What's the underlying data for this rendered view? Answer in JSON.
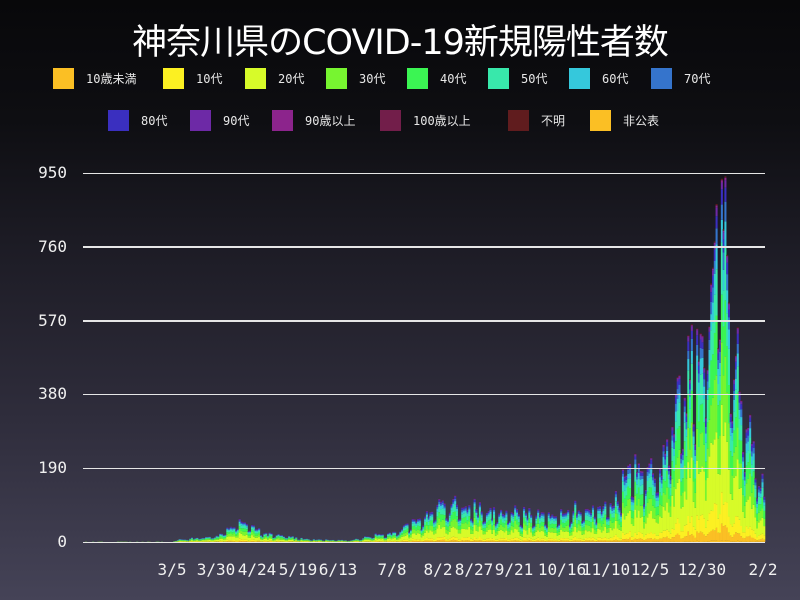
{
  "title": "神奈川県のCOVID-19新規陽性者数",
  "legend": [
    {
      "label": "10歳未満",
      "color": "#fbbf24"
    },
    {
      "label": "10代",
      "color": "#fcf022"
    },
    {
      "label": "20代",
      "color": "#d7fb29"
    },
    {
      "label": "30代",
      "color": "#77f530"
    },
    {
      "label": "40代",
      "color": "#3bf553"
    },
    {
      "label": "50代",
      "color": "#38e8ab"
    },
    {
      "label": "60代",
      "color": "#35c8dc"
    },
    {
      "label": "70代",
      "color": "#3574cc"
    },
    {
      "label": "80代",
      "color": "#3a2fbf"
    },
    {
      "label": "90代",
      "color": "#6d29a6"
    },
    {
      "label": "90歳以上",
      "color": "#8c248c"
    },
    {
      "label": "100歳以上",
      "color": "#721e4a"
    },
    {
      "label": "不明",
      "color": "#601c1e"
    },
    {
      "label": "非公表",
      "color": "#fbbf24"
    }
  ],
  "chart_data": {
    "type": "bar",
    "stacked": true,
    "title": "神奈川県のCOVID-19新規陽性者数",
    "xlabel": "",
    "ylabel": "",
    "ylim": [
      0,
      1000
    ],
    "yticks": [
      0,
      190,
      380,
      570,
      760,
      950
    ],
    "xtick_labels": [
      "3/5",
      "3/30",
      "4/24",
      "5/19",
      "6/13",
      "7/8",
      "8/2",
      "8/27",
      "9/21",
      "10/16",
      "11/10",
      "12/5",
      "12/30",
      "2/2"
    ],
    "grid": true,
    "legend_position": "top",
    "series_names": [
      "10歳未満",
      "10代",
      "20代",
      "30代",
      "40代",
      "50代",
      "60代",
      "70代",
      "80代",
      "90代",
      "90歳以上",
      "100歳以上",
      "不明",
      "非公表"
    ],
    "period": "2020/1 - 2021/2/2",
    "weekly_peak_totals": [
      {
        "week_of": "2020-03-05",
        "total": 5
      },
      {
        "week_of": "2020-03-30",
        "total": 20
      },
      {
        "week_of": "2020-04-10",
        "total": 65
      },
      {
        "week_of": "2020-04-24",
        "total": 30
      },
      {
        "week_of": "2020-05-19",
        "total": 8
      },
      {
        "week_of": "2020-06-13",
        "total": 5
      },
      {
        "week_of": "2020-07-08",
        "total": 30
      },
      {
        "week_of": "2020-07-25",
        "total": 75
      },
      {
        "week_of": "2020-08-02",
        "total": 110
      },
      {
        "week_of": "2020-08-27",
        "total": 95
      },
      {
        "week_of": "2020-09-21",
        "total": 80
      },
      {
        "week_of": "2020-10-16",
        "total": 85
      },
      {
        "week_of": "2020-11-10",
        "total": 130
      },
      {
        "week_of": "2020-11-20",
        "total": 215
      },
      {
        "week_of": "2020-12-05",
        "total": 230
      },
      {
        "week_of": "2020-12-20",
        "total": 490
      },
      {
        "week_of": "2020-12-30",
        "total": 600
      },
      {
        "week_of": "2021-01-07",
        "total": 990
      },
      {
        "week_of": "2021-01-12",
        "total": 820
      },
      {
        "week_of": "2021-01-20",
        "total": 410
      },
      {
        "week_of": "2021-02-02",
        "total": 150
      }
    ]
  }
}
